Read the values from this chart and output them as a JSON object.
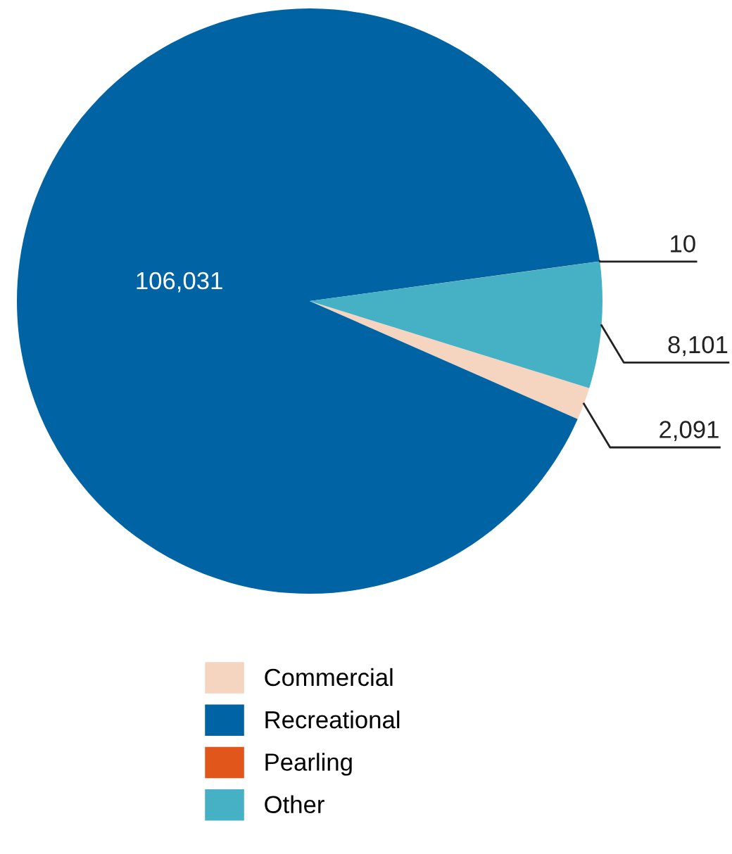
{
  "chart_data": {
    "type": "pie",
    "categories": [
      "Commercial",
      "Recreational",
      "Pearling",
      "Other"
    ],
    "values": [
      2091,
      106031,
      10,
      8101
    ],
    "value_labels": [
      "2,091",
      "106,031",
      "10",
      "8,101"
    ],
    "colors": [
      "#f5d5c0",
      "#0063a3",
      "#e0561b",
      "#46b0c5"
    ],
    "legend": "bottom"
  }
}
